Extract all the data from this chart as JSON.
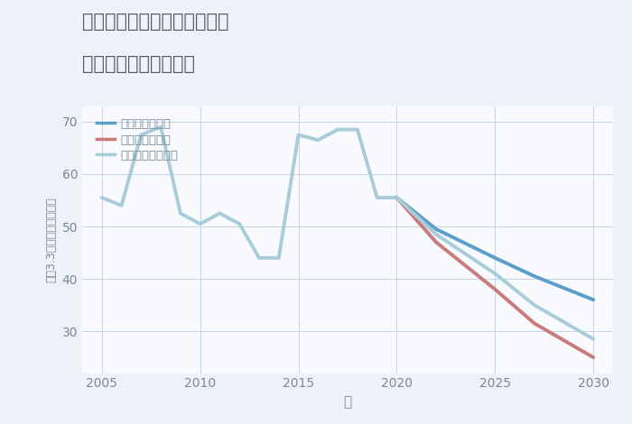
{
  "title_line1": "千葉県夷隅郡大多喜町原内の",
  "title_line2": "中古戸建ての価格推移",
  "xlabel": "年",
  "ylabel": "坪（3.3㎡）単価（万円）",
  "background_color": "#eef2f8",
  "plot_background": "#f8fafd",
  "grid_color": "#c5d5e8",
  "xlim": [
    2004,
    2031
  ],
  "ylim": [
    22,
    73
  ],
  "yticks": [
    30,
    40,
    50,
    60,
    70
  ],
  "xticks": [
    2005,
    2010,
    2015,
    2020,
    2025,
    2030
  ],
  "legend_labels": [
    "グッドシナリオ",
    "バッドシナリオ",
    "ノーマルシナリオ"
  ],
  "good_color": "#5b9ec9",
  "bad_color": "#c97a7a",
  "normal_color": "#a8ccd8",
  "historical_x": [
    2005,
    2006,
    2007,
    2008,
    2009,
    2010,
    2011,
    2012,
    2013,
    2014,
    2015,
    2016,
    2017,
    2018,
    2019,
    2020
  ],
  "historical_y": [
    55.5,
    54.0,
    67.5,
    69.0,
    52.5,
    50.5,
    52.5,
    50.5,
    44.0,
    44.0,
    67.5,
    66.5,
    68.5,
    68.5,
    55.5,
    55.5
  ],
  "good_future_x": [
    2020,
    2022,
    2025,
    2027,
    2030
  ],
  "good_future_y": [
    55.5,
    49.5,
    44.0,
    40.5,
    36.0
  ],
  "bad_future_x": [
    2020,
    2022,
    2025,
    2027,
    2030
  ],
  "bad_future_y": [
    55.5,
    47.0,
    38.0,
    31.5,
    25.0
  ],
  "normal_future_x": [
    2020,
    2022,
    2025,
    2027,
    2030
  ],
  "normal_future_y": [
    55.5,
    48.5,
    41.0,
    35.0,
    28.5
  ],
  "title_color": "#555566",
  "tick_color": "#778899",
  "label_color": "#778899"
}
